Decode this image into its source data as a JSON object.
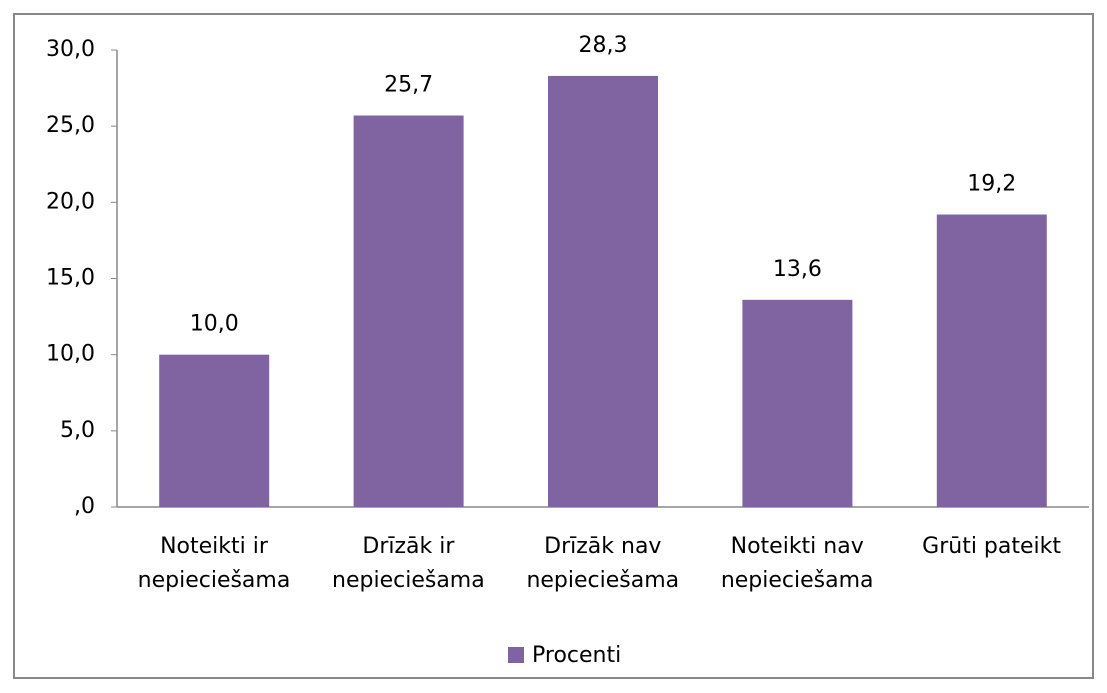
{
  "chart_data": {
    "type": "bar",
    "categories": [
      "Noteikti ir\nnepieciešama",
      "Drīzāk ir\nnepieciešama",
      "Drīzāk nav\nnepieciešama",
      "Noteikti  nav\nnepieciešama",
      "Grūti pateikt"
    ],
    "series": [
      {
        "name": "Procenti",
        "color": "#8064a2",
        "values": [
          10.0,
          25.7,
          28.3,
          13.6,
          19.2
        ],
        "value_labels": [
          "10,0",
          "25,7",
          "28,3",
          "13,6",
          "19,2"
        ]
      }
    ],
    "ylim": [
      0,
      30
    ],
    "yticks": [
      {
        "value": 0,
        "label": ",0"
      },
      {
        "value": 5,
        "label": "5,0"
      },
      {
        "value": 10,
        "label": "10,0"
      },
      {
        "value": 15,
        "label": "15,0"
      },
      {
        "value": 20,
        "label": "20,0"
      },
      {
        "value": 25,
        "label": "25,0"
      },
      {
        "value": 30,
        "label": "30,0"
      }
    ],
    "grid": false,
    "legend": "bottom"
  }
}
